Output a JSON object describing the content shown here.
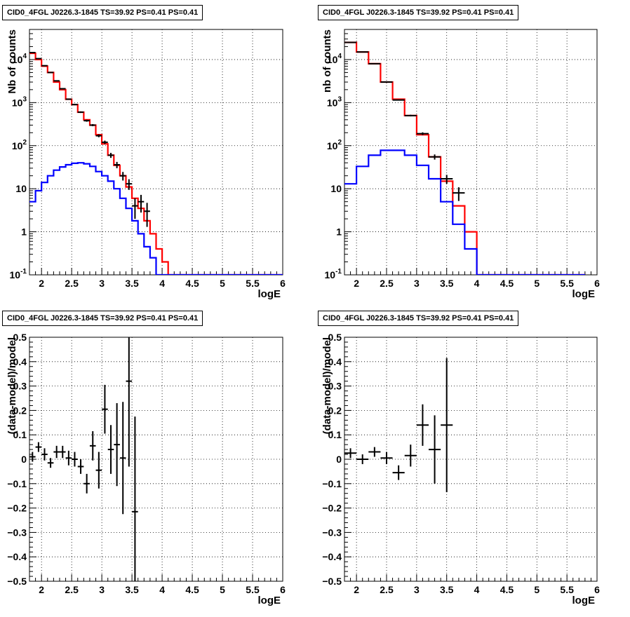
{
  "chart_data": [
    {
      "type": "line",
      "title": "CID0_4FGL J0226.3-1845 TS=39.92 PS=0.41 PS=0.41",
      "xlabel": "logE",
      "ylabel": "Nb of counts",
      "xlim": [
        1.8,
        6
      ],
      "ylim": [
        0.1,
        50000
      ],
      "yscale": "log",
      "grid": true,
      "x_ticks": [
        "2",
        "2.5",
        "3",
        "3.5",
        "4",
        "4.5",
        "5",
        "5.5",
        "6"
      ],
      "y_ticks": [
        "10^-1",
        "1",
        "10",
        "10^2",
        "10^3",
        "10^4"
      ],
      "bin_edges": [
        1.8,
        1.9,
        2.0,
        2.1,
        2.2,
        2.3,
        2.4,
        2.5,
        2.6,
        2.7,
        2.8,
        2.9,
        3.0,
        3.1,
        3.2,
        3.3,
        3.4,
        3.5,
        3.6,
        3.7,
        3.8,
        3.9,
        4.0,
        4.1,
        4.2,
        4.3,
        4.4,
        4.5,
        4.6,
        4.7,
        4.8,
        4.9,
        5.0,
        5.1,
        5.2,
        5.3,
        5.4,
        5.5,
        5.6,
        5.7,
        5.8,
        5.9,
        6.0
      ],
      "series": [
        {
          "name": "",
          "color": "#ff0000",
          "style": "step",
          "values": [
            14000,
            10000,
            7000,
            5000,
            3000,
            2000,
            1200,
            900,
            600,
            400,
            300,
            180,
            110,
            60,
            35,
            20,
            11,
            6,
            3.5,
            1.8,
            0.9,
            0.4,
            0.2,
            0.1,
            0.1,
            0.1,
            0.1,
            0.1,
            0.1,
            0.1,
            0.1,
            0.1,
            0.1,
            0.1,
            0.1,
            0.1,
            0.1,
            0.1,
            0.1,
            0.1,
            0.1,
            0.1
          ]
        },
        {
          "name": "",
          "color": "#0000ff",
          "style": "step",
          "values": [
            5,
            9,
            14,
            20,
            27,
            32,
            36,
            39,
            40,
            38,
            33,
            25,
            20,
            15,
            10,
            6,
            3.5,
            1.8,
            0.9,
            0.45,
            0.25,
            0.1,
            0.1,
            0.1,
            0.1,
            0.1,
            0.1,
            0.1,
            0.1,
            0.1,
            0.1,
            0.1,
            0.1,
            0.1,
            0.1,
            0.1,
            0.1,
            0.1,
            0.1,
            0.1,
            0.1,
            0.1
          ]
        },
        {
          "name": "",
          "color": "#000000",
          "style": "points",
          "points": [
            [
              1.85,
              14500,
              0.05,
              120
            ],
            [
              1.95,
              10500,
              0.05,
              100
            ],
            [
              2.05,
              7200,
              0.05,
              85
            ],
            [
              2.15,
              5000,
              0.05,
              70
            ],
            [
              2.25,
              3200,
              0.05,
              56
            ],
            [
              2.35,
              2100,
              0.05,
              46
            ],
            [
              2.45,
              1200,
              0.05,
              35
            ],
            [
              2.55,
              900,
              0.05,
              30
            ],
            [
              2.65,
              600,
              0.05,
              25
            ],
            [
              2.75,
              380,
              0.05,
              20
            ],
            [
              2.85,
              300,
              0.05,
              17
            ],
            [
              2.95,
              170,
              0.05,
              13
            ],
            [
              3.05,
              120,
              0.05,
              11
            ],
            [
              3.15,
              60,
              0.05,
              8
            ],
            [
              3.25,
              36,
              0.05,
              6
            ],
            [
              3.35,
              20,
              0.05,
              4.5
            ],
            [
              3.45,
              13,
              0.05,
              3.6
            ],
            [
              3.55,
              4,
              0.05,
              2
            ],
            [
              3.65,
              5,
              0.05,
              2.2
            ],
            [
              3.75,
              3,
              0.05,
              1.7
            ]
          ]
        }
      ]
    },
    {
      "type": "line",
      "title": "CID0_4FGL J0226.3-1845 TS=39.92 PS=0.41 PS=0.41",
      "xlabel": "logE",
      "ylabel": "nb of counts",
      "xlim": [
        1.8,
        6
      ],
      "ylim": [
        0.1,
        50000
      ],
      "yscale": "log",
      "grid": true,
      "x_ticks": [
        "2",
        "2.5",
        "3",
        "3.5",
        "4",
        "4.5",
        "5",
        "5.5",
        "6"
      ],
      "y_ticks": [
        "10^-1",
        "1",
        "10",
        "10^2",
        "10^3",
        "10^4"
      ],
      "bin_edges": [
        1.8,
        2.0,
        2.2,
        2.4,
        2.6,
        2.8,
        3.0,
        3.2,
        3.4,
        3.6,
        3.8,
        4.0,
        4.2,
        4.4,
        4.6,
        4.8,
        5.0,
        5.2,
        5.4,
        5.6,
        5.8,
        6.0
      ],
      "series": [
        {
          "name": "",
          "color": "#ff0000",
          "style": "step",
          "values": [
            25000,
            15000,
            8000,
            3000,
            1200,
            500,
            180,
            55,
            15,
            4,
            1,
            0.1,
            0.1,
            0.1,
            0.1,
            0.1,
            0.1,
            0.1,
            0.1,
            0.1
          ]
        },
        {
          "name": "",
          "color": "#0000ff",
          "style": "step",
          "values": [
            13,
            33,
            60,
            78,
            78,
            60,
            35,
            17,
            5,
            1.5,
            0.4,
            0.1,
            0.1,
            0.1,
            0.1,
            0.1,
            0.1,
            0.1,
            0.1,
            0.1
          ]
        },
        {
          "name": "",
          "color": "#000000",
          "style": "points",
          "points": [
            [
              1.9,
              25000,
              0.1,
              160
            ],
            [
              2.1,
              15000,
              0.1,
              120
            ],
            [
              2.3,
              8000,
              0.1,
              90
            ],
            [
              2.5,
              3000,
              0.1,
              55
            ],
            [
              2.7,
              1150,
              0.1,
              34
            ],
            [
              2.9,
              500,
              0.1,
              22
            ],
            [
              3.1,
              190,
              0.1,
              14
            ],
            [
              3.3,
              55,
              0.1,
              7.5
            ],
            [
              3.5,
              17,
              0.1,
              4
            ],
            [
              3.7,
              8,
              0.1,
              2.8
            ]
          ]
        }
      ]
    },
    {
      "type": "scatter",
      "title": "CID0_4FGL J0226.3-1845 TS=39.92 PS=0.41 PS=0.41",
      "xlabel": "logE",
      "ylabel": "(data-model)/model",
      "xlim": [
        1.8,
        6
      ],
      "ylim": [
        -0.5,
        0.5
      ],
      "grid": true,
      "x_ticks": [
        "2",
        "2.5",
        "3",
        "3.5",
        "4",
        "4.5",
        "5",
        "5.5",
        "6"
      ],
      "y_ticks": [
        "-0.5",
        "-0.4",
        "-0.3",
        "-0.2",
        "-0.1",
        "0",
        "0.1",
        "0.2",
        "0.3",
        "0.4",
        "0.5"
      ],
      "series": [
        {
          "name": "",
          "color": "#000000",
          "points": [
            [
              1.85,
              0.01,
              0.05,
              0.02
            ],
            [
              1.95,
              0.05,
              0.05,
              0.02
            ],
            [
              2.05,
              0.02,
              0.05,
              0.025
            ],
            [
              2.15,
              -0.015,
              0.05,
              0.02
            ],
            [
              2.25,
              0.03,
              0.05,
              0.025
            ],
            [
              2.35,
              0.03,
              0.05,
              0.025
            ],
            [
              2.45,
              0.005,
              0.05,
              0.03
            ],
            [
              2.55,
              0.0,
              0.05,
              0.03
            ],
            [
              2.65,
              -0.03,
              0.05,
              0.03
            ],
            [
              2.75,
              -0.1,
              0.05,
              0.04
            ],
            [
              2.85,
              0.055,
              0.05,
              0.06
            ],
            [
              2.95,
              -0.045,
              0.05,
              0.075
            ],
            [
              3.05,
              0.205,
              0.05,
              0.1
            ],
            [
              3.15,
              0.04,
              0.05,
              0.1
            ],
            [
              3.25,
              0.06,
              0.05,
              0.17
            ],
            [
              3.35,
              0.005,
              0.05,
              0.23
            ],
            [
              3.45,
              0.32,
              0.05,
              0.35
            ],
            [
              3.55,
              -0.215,
              0.05,
              0.39
            ]
          ]
        }
      ]
    },
    {
      "type": "scatter",
      "title": "CID0_4FGL J0226.3-1845 TS=39.92 PS=0.41 PS=0.41",
      "xlabel": "logE",
      "ylabel": "(data-model)/model",
      "xlim": [
        1.8,
        6
      ],
      "ylim": [
        -0.5,
        0.5
      ],
      "grid": true,
      "x_ticks": [
        "2",
        "2.5",
        "3",
        "3.5",
        "4",
        "4.5",
        "5",
        "5.5",
        "6"
      ],
      "y_ticks": [
        "-0.5",
        "-0.4",
        "-0.3",
        "-0.2",
        "-0.1",
        "0",
        "0.1",
        "0.2",
        "0.3",
        "0.4",
        "0.5"
      ],
      "series": [
        {
          "name": "",
          "color": "#000000",
          "points": [
            [
              1.9,
              0.025,
              0.1,
              0.02
            ],
            [
              2.1,
              0.0,
              0.1,
              0.02
            ],
            [
              2.3,
              0.03,
              0.1,
              0.02
            ],
            [
              2.5,
              0.005,
              0.1,
              0.025
            ],
            [
              2.7,
              -0.055,
              0.1,
              0.03
            ],
            [
              2.9,
              0.015,
              0.1,
              0.045
            ],
            [
              3.1,
              0.14,
              0.1,
              0.085
            ],
            [
              3.3,
              0.04,
              0.1,
              0.14
            ],
            [
              3.5,
              0.14,
              0.1,
              0.275
            ]
          ]
        }
      ]
    }
  ]
}
